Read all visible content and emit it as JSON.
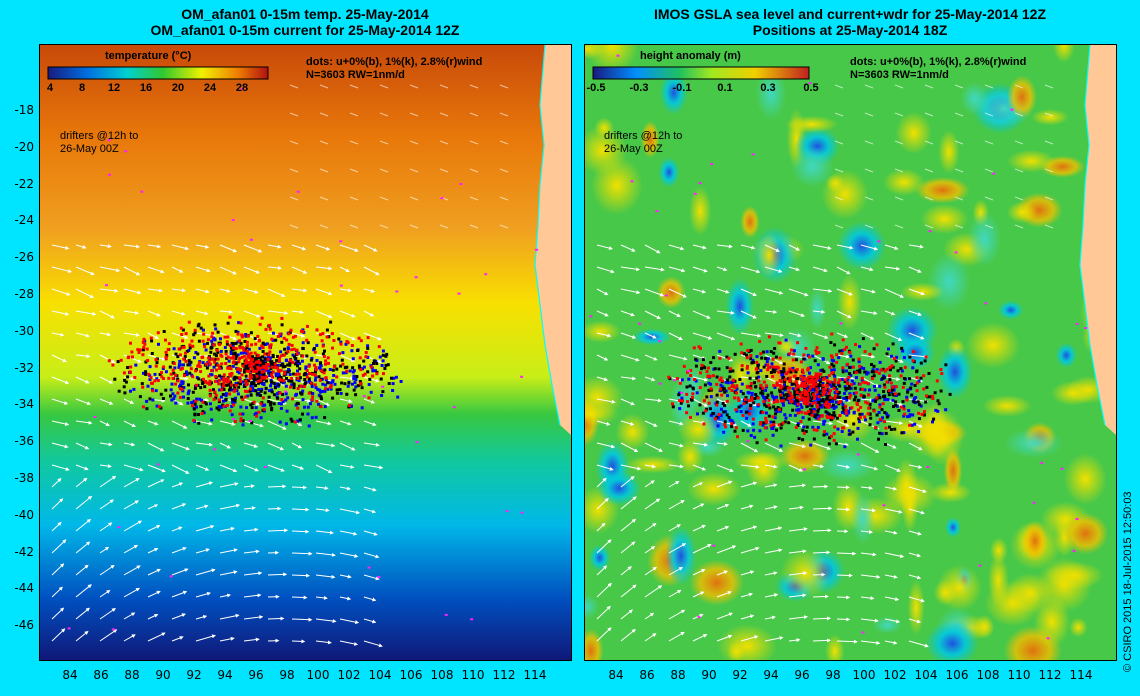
{
  "left_panel": {
    "title_line1": "OM_afan01 0-15m temp. 25-May-2014",
    "title_line2": "OM_afan01 0-15m current for 25-May-2014 12Z",
    "colorbar_title": "temperature (°C)",
    "colorbar_ticks": [
      "4",
      "8",
      "12",
      "16",
      "20",
      "24",
      "28"
    ],
    "legend_line1": "dots: u+0%(b), 1%(k), 2.8%(r)wind",
    "legend_line2": "N=3603 RW=1nm/d",
    "note_line1": "drifters @12h to",
    "note_line2": "26-May 00Z"
  },
  "right_panel": {
    "title_line1": "IMOS GSLA sea level and current+wdr for 25-May-2014 12Z",
    "title_line2": "Positions at 25-May-2014 18Z",
    "colorbar_title": "height anomaly (m)",
    "colorbar_ticks": [
      "-0.5",
      "-0.3",
      "-0.1",
      "0.1",
      "0.3",
      "0.5"
    ],
    "legend_line1": "dots: u+0%(b), 1%(k), 2.8%(r)wind",
    "legend_line2": "N=3603 RW=1nm/d",
    "note_line1": "drifters @12h to",
    "note_line2": "26-May 00Z"
  },
  "y_axis_labels": [
    "-18",
    "-20",
    "-22",
    "-24",
    "-26",
    "-28",
    "-30",
    "-32",
    "-34",
    "-36",
    "-38",
    "-40",
    "-42",
    "-44",
    "-46"
  ],
  "x_axis_labels": [
    "84",
    "86",
    "88",
    "90",
    "92",
    "94",
    "96",
    "98",
    "100",
    "102",
    "104",
    "106",
    "108",
    "110",
    "112",
    "114"
  ],
  "copyright": "© CSIRO 2015   18-Jul-2015 12:50:03",
  "colors": {
    "background": "#00e5ff",
    "drifter_blue": "#0000ff",
    "drifter_black": "#000000",
    "drifter_red": "#ff0000",
    "land": "#ffc896",
    "coastline": "#00ffff"
  }
}
